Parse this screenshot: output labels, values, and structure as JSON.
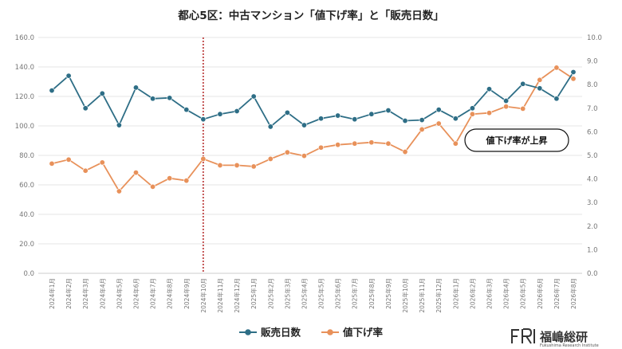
{
  "chart_data": {
    "type": "line",
    "title": "都心5区：中古マンション「値下げ率」と「販売日数」",
    "categories": [
      "2024年1月",
      "2024年2月",
      "2024年3月",
      "2024年4月",
      "2024年5月",
      "2024年6月",
      "2024年7月",
      "2024年8月",
      "2024年9月",
      "2024年10月",
      "2024年11月",
      "2024年12月",
      "2025年1月",
      "2025年2月",
      "2025年3月",
      "2025年4月",
      "2025年5月",
      "2025年6月",
      "2025年7月",
      "2025年8月",
      "2025年9月",
      "2025年10月",
      "2025年11月",
      "2025年12月",
      "2026年1月",
      "2026年2月",
      "2026年3月",
      "2026年4月",
      "2026年5月",
      "2026年6月",
      "2026年7月",
      "2026年8月"
    ],
    "series": [
      {
        "name": "販売日数",
        "axis": "left",
        "color": "#2e6e86",
        "values": [
          124,
          134,
          112,
          122,
          100.5,
          126,
          118.5,
          119,
          111,
          104.5,
          108,
          110,
          120,
          99.5,
          109,
          100.5,
          105,
          107,
          104.5,
          108,
          110.5,
          103.5,
          104,
          111,
          105,
          112,
          125,
          117,
          128.5,
          125.5,
          118.5,
          136.5
        ]
      },
      {
        "name": "値下げ率",
        "axis": "right",
        "color": "#e8915a",
        "values": [
          4.65,
          4.82,
          4.35,
          4.7,
          3.48,
          4.27,
          3.67,
          4.03,
          3.93,
          4.85,
          4.58,
          4.58,
          4.53,
          4.85,
          5.13,
          4.98,
          5.33,
          5.45,
          5.5,
          5.55,
          5.5,
          5.15,
          6.1,
          6.35,
          5.5,
          6.75,
          6.8,
          7.07,
          6.98,
          8.2,
          8.72,
          8.25
        ]
      }
    ],
    "y_left": {
      "min": 0,
      "max": 160,
      "step": 20,
      "ticks": [
        "0.0",
        "20.0",
        "40.0",
        "60.0",
        "80.0",
        "100.0",
        "120.0",
        "140.0",
        "160.0"
      ]
    },
    "y_right": {
      "min": 0,
      "max": 10,
      "step": 1,
      "ticks": [
        "0.0",
        "1.0",
        "2.0",
        "3.0",
        "4.0",
        "5.0",
        "6.0",
        "7.0",
        "8.0",
        "9.0",
        "10.0"
      ]
    },
    "grid": true,
    "legend_placement": "bottom-center",
    "marker_line": {
      "category": "2024年10月",
      "color": "#b22222",
      "style": "dotted"
    },
    "annotation": {
      "text": "値下げ率が上昇"
    }
  },
  "branding": {
    "logo_mark": "FRI",
    "logo_text": "福嶋総研",
    "logo_sub": "Fukushima Research Institute"
  }
}
